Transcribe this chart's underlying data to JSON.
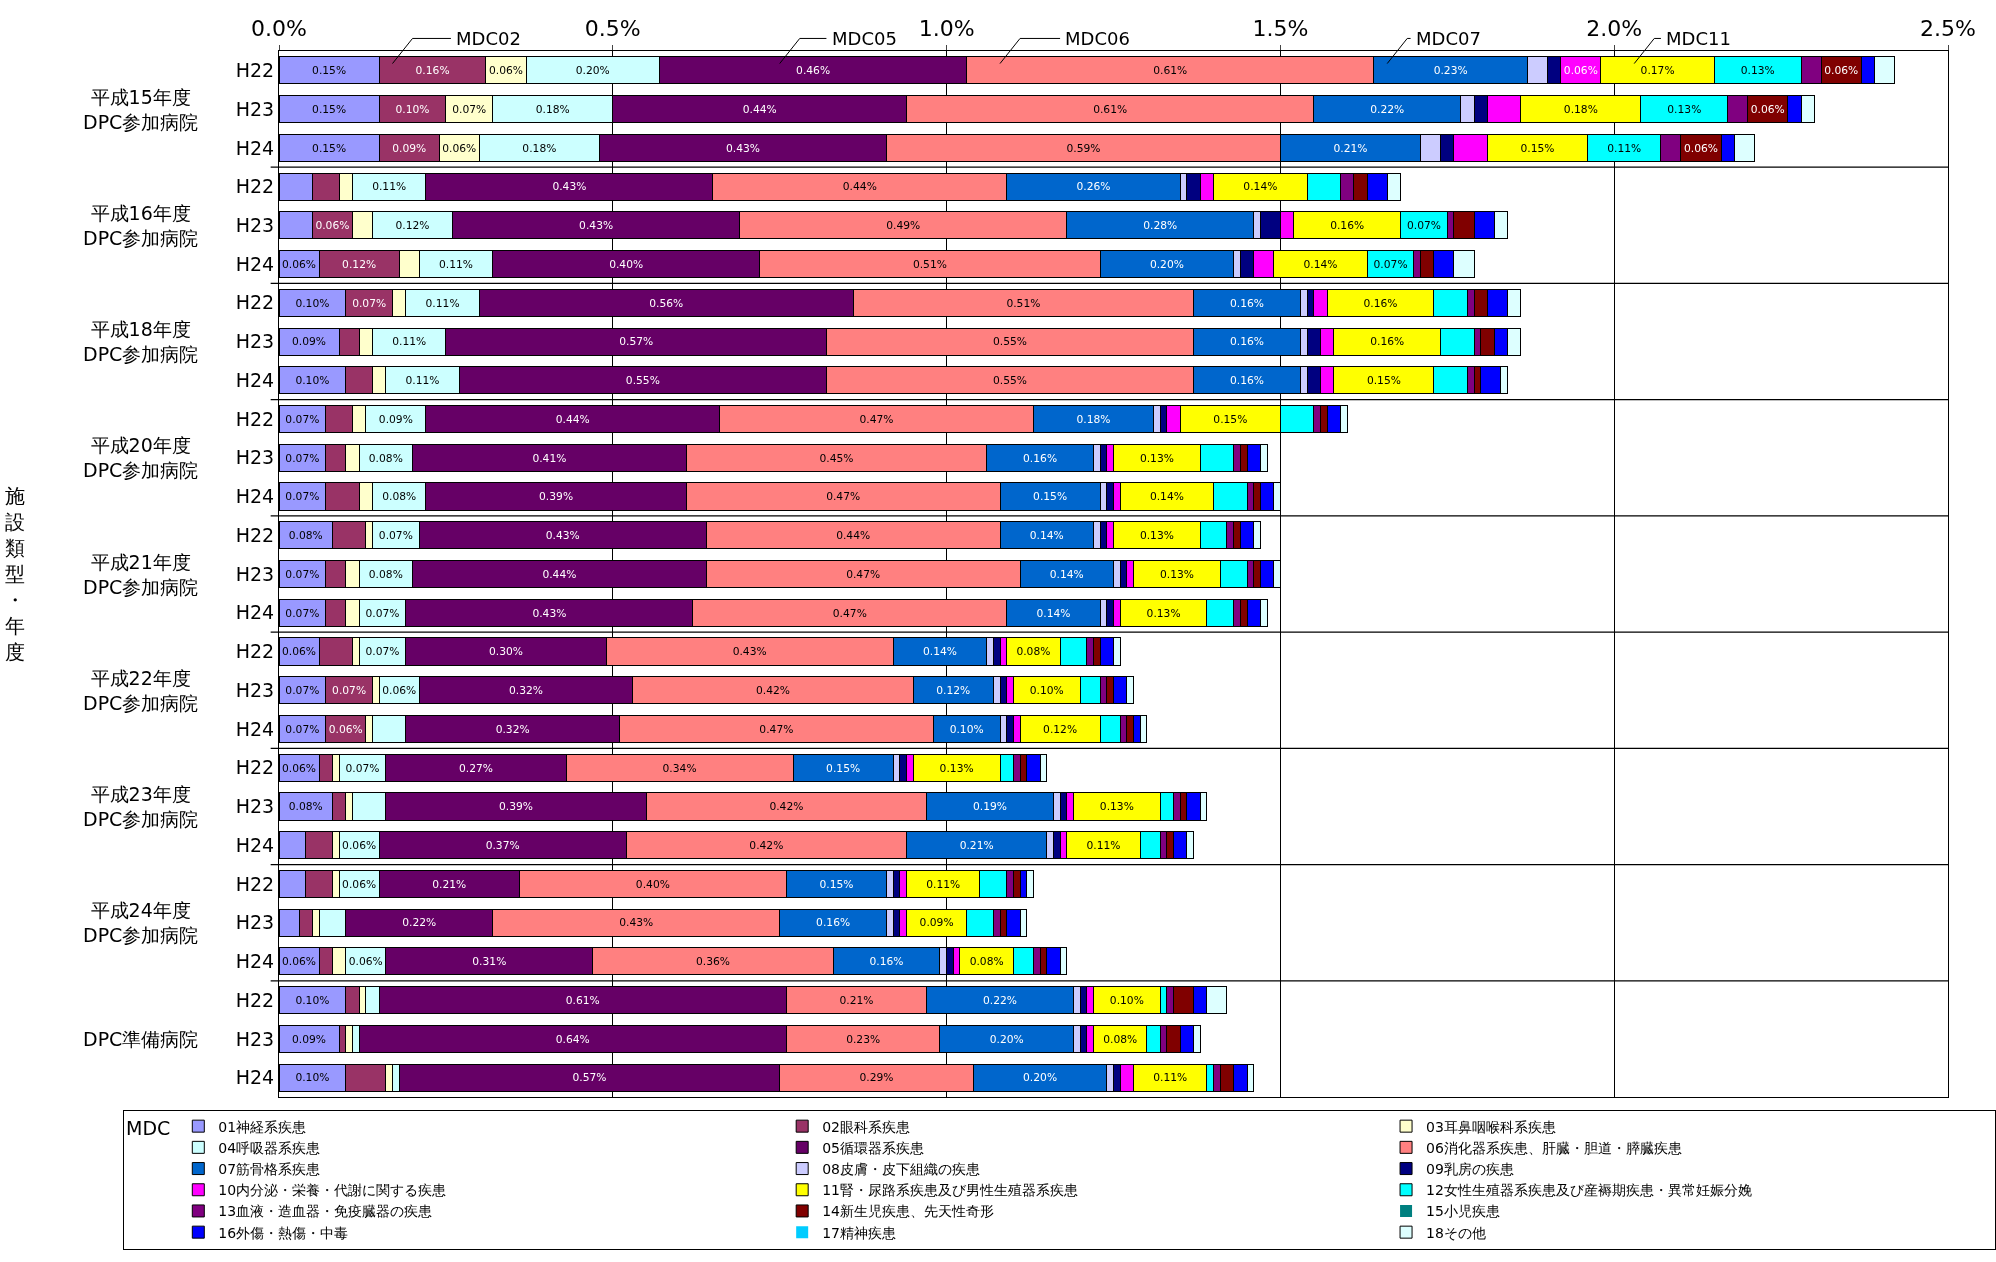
{
  "chart_data": {
    "type": "bar",
    "orientation": "horizontal",
    "stacked": true,
    "legend_title": "MDC",
    "legend": "bottom",
    "grid": "x",
    "categories": [
      "H22",
      "H23",
      "H24",
      "H22",
      "H23",
      "H24",
      "H22",
      "H23",
      "H24",
      "H22",
      "H23",
      "H24",
      "H22",
      "H23",
      "H24",
      "H22",
      "H23",
      "H24",
      "H22",
      "H23",
      "H24",
      "H22",
      "H23",
      "H24",
      "H22",
      "H23",
      "H24"
    ],
    "xlim": [
      0,
      2.5
    ],
    "xticks": [
      {
        "value": 0,
        "label": "0.0%"
      },
      {
        "value": 0.5,
        "label": "0.5%"
      },
      {
        "value": 1,
        "label": "1.0%"
      },
      {
        "value": 1.5,
        "label": "1.5%"
      },
      {
        "value": 2,
        "label": "2.0%"
      },
      {
        "value": 2.5,
        "label": "2.5%"
      }
    ],
    "annotations": [
      "平成15年度\nDPC参加病院",
      "平成16年度\nDPC参加病院",
      "平成18年度\nDPC参加病院",
      "平成20年度\nDPC参加病院",
      "平成21年度\nDPC参加病院",
      "平成22年度\nDPC参加病院",
      "平成23年度\nDPC参加病院",
      "平成24年度\nDPC参加病院",
      "DPC準備病院",
      "MDC02",
      "MDC05",
      "MDC06",
      "MDC07",
      "MDC11",
      "施設類型・年度"
    ],
    "series": [
      {
        "name": "01神経系疾患",
        "color": "#9999ff",
        "values": [
          0.15,
          0.15,
          0.15,
          0.05,
          0.05,
          0.06,
          0.1,
          0.09,
          0.1,
          0.07,
          0.07,
          0.07,
          0.08,
          0.07,
          0.07,
          0.06,
          0.07,
          0.07,
          0.06,
          0.08,
          0.04,
          0.04,
          0.03,
          0.06,
          0.1,
          0.09,
          0.1
        ],
        "value_labels": [
          "0.15%",
          "0.15%",
          "0.15%",
          null,
          null,
          "0.06%",
          "0.10%",
          "0.09%",
          "0.10%",
          "0.07%",
          "0.07%",
          "0.07%",
          "0.08%",
          "0.07%",
          "0.07%",
          "0.06%",
          "0.07%",
          "0.07%",
          "0.06%",
          "0.08%",
          null,
          null,
          null,
          "0.06%",
          "0.10%",
          "0.09%",
          "0.10%"
        ]
      },
      {
        "name": "02眼科系疾患",
        "color": "#993366",
        "values": [
          0.16,
          0.1,
          0.09,
          0.04,
          0.06,
          0.12,
          0.07,
          0.03,
          0.04,
          0.04,
          0.03,
          0.05,
          0.05,
          0.03,
          0.03,
          0.05,
          0.07,
          0.06,
          0.02,
          0.02,
          0.04,
          0.04,
          0.02,
          0.02,
          0.02,
          0.01,
          0.06
        ],
        "value_labels": [
          "0.16%",
          "0.10%",
          "0.09%",
          null,
          "0.06%",
          "0.12%",
          "0.07%",
          null,
          null,
          null,
          null,
          null,
          null,
          null,
          null,
          null,
          "0.07%",
          "0.06%",
          null,
          null,
          null,
          null,
          null,
          null,
          null,
          null,
          null
        ]
      },
      {
        "name": "03耳鼻咽喉科系疾患",
        "color": "#ffffcc",
        "values": [
          0.06,
          0.07,
          0.06,
          0.02,
          0.03,
          0.03,
          0.02,
          0.02,
          0.02,
          0.02,
          0.02,
          0.02,
          0.01,
          0.02,
          0.02,
          0.01,
          0.01,
          0.01,
          0.01,
          0.01,
          0.01,
          0.01,
          0.01,
          0.02,
          0.01,
          0.01,
          0.01
        ],
        "value_labels": [
          "0.06%",
          "0.07%",
          "0.06%",
          null,
          null,
          null,
          null,
          null,
          null,
          null,
          null,
          null,
          null,
          null,
          null,
          null,
          null,
          null,
          null,
          null,
          null,
          null,
          null,
          null,
          null,
          null,
          null
        ]
      },
      {
        "name": "04呼吸器系疾患",
        "color": "#ccffff",
        "values": [
          0.2,
          0.18,
          0.18,
          0.11,
          0.12,
          0.11,
          0.11,
          0.11,
          0.11,
          0.09,
          0.08,
          0.08,
          0.07,
          0.08,
          0.07,
          0.07,
          0.06,
          0.05,
          0.07,
          0.05,
          0.06,
          0.06,
          0.04,
          0.06,
          0.02,
          0.01,
          0.01
        ],
        "value_labels": [
          "0.20%",
          "0.18%",
          "0.18%",
          "0.11%",
          "0.12%",
          "0.11%",
          "0.11%",
          "0.11%",
          "0.11%",
          "0.09%",
          "0.08%",
          "0.08%",
          "0.07%",
          "0.08%",
          "0.07%",
          "0.07%",
          "0.06%",
          null,
          "0.07%",
          null,
          "0.06%",
          "0.06%",
          null,
          "0.06%",
          null,
          null,
          null
        ]
      },
      {
        "name": "05循環器系疾患",
        "color": "#660066",
        "values": [
          0.46,
          0.44,
          0.43,
          0.43,
          0.43,
          0.4,
          0.56,
          0.57,
          0.55,
          0.44,
          0.41,
          0.39,
          0.43,
          0.44,
          0.43,
          0.3,
          0.32,
          0.32,
          0.27,
          0.39,
          0.37,
          0.21,
          0.22,
          0.31,
          0.61,
          0.64,
          0.57
        ],
        "value_labels": [
          "0.46%",
          "0.44%",
          "0.43%",
          "0.43%",
          "0.43%",
          "0.40%",
          "0.56%",
          "0.57%",
          "0.55%",
          "0.44%",
          "0.41%",
          "0.39%",
          "0.43%",
          "0.44%",
          "0.43%",
          "0.30%",
          "0.32%",
          "0.32%",
          "0.27%",
          "0.39%",
          "0.37%",
          "0.21%",
          "0.22%",
          "0.31%",
          "0.61%",
          "0.64%",
          "0.57%"
        ]
      },
      {
        "name": "06消化器系疾患、肝臓・胆道・膵臓疾患",
        "color": "#ff8080",
        "values": [
          0.61,
          0.61,
          0.59,
          0.44,
          0.49,
          0.51,
          0.51,
          0.55,
          0.55,
          0.47,
          0.45,
          0.47,
          0.44,
          0.47,
          0.47,
          0.43,
          0.42,
          0.47,
          0.34,
          0.42,
          0.42,
          0.4,
          0.43,
          0.36,
          0.21,
          0.23,
          0.29
        ],
        "value_labels": [
          "0.61%",
          "0.61%",
          "0.59%",
          "0.44%",
          "0.49%",
          "0.51%",
          "0.51%",
          "0.55%",
          "0.55%",
          "0.47%",
          "0.45%",
          "0.47%",
          "0.44%",
          "0.47%",
          "0.47%",
          "0.43%",
          "0.42%",
          "0.47%",
          "0.34%",
          "0.42%",
          "0.42%",
          "0.40%",
          "0.43%",
          "0.36%",
          "0.21%",
          "0.23%",
          "0.29%"
        ]
      },
      {
        "name": "07筋骨格系疾患",
        "color": "#0066cc",
        "values": [
          0.23,
          0.22,
          0.21,
          0.26,
          0.28,
          0.2,
          0.16,
          0.16,
          0.16,
          0.18,
          0.16,
          0.15,
          0.14,
          0.14,
          0.14,
          0.14,
          0.12,
          0.1,
          0.15,
          0.19,
          0.21,
          0.15,
          0.16,
          0.16,
          0.22,
          0.2,
          0.2
        ],
        "value_labels": [
          "0.23%",
          "0.22%",
          "0.21%",
          "0.26%",
          "0.28%",
          "0.20%",
          "0.16%",
          "0.16%",
          "0.16%",
          "0.18%",
          "0.16%",
          "0.15%",
          "0.14%",
          "0.14%",
          "0.14%",
          "0.14%",
          "0.12%",
          "0.10%",
          "0.15%",
          "0.19%",
          "0.21%",
          "0.15%",
          "0.16%",
          "0.16%",
          "0.22%",
          "0.20%",
          "0.20%"
        ]
      },
      {
        "name": "08皮膚・皮下組織の疾患",
        "color": "#ccccff",
        "values": [
          0.03,
          0.02,
          0.03,
          0.01,
          0.01,
          0.01,
          0.01,
          0.01,
          0.01,
          0.01,
          0.01,
          0.01,
          0.01,
          0.01,
          0.01,
          0.01,
          0.01,
          0.01,
          0.01,
          0.01,
          0.01,
          0.01,
          0.01,
          0.01,
          0.01,
          0.01,
          0.01
        ]
      },
      {
        "name": "09乳房の疾患",
        "color": "#000080",
        "values": [
          0.02,
          0.02,
          0.02,
          0.02,
          0.03,
          0.02,
          0.01,
          0.02,
          0.02,
          0.01,
          0.01,
          0.01,
          0.01,
          0.01,
          0.01,
          0.01,
          0.01,
          0.01,
          0.01,
          0.01,
          0.01,
          0.01,
          0.01,
          0.01,
          0.01,
          0.01,
          0.01
        ]
      },
      {
        "name": "10内分泌・栄養・代謝に関する疾患",
        "color": "#ff00ff",
        "values": [
          0.06,
          0.05,
          0.05,
          0.02,
          0.02,
          0.03,
          0.02,
          0.02,
          0.02,
          0.02,
          0.01,
          0.01,
          0.01,
          0.01,
          0.01,
          0.01,
          0.01,
          0.01,
          0.01,
          0.01,
          0.01,
          0.01,
          0.01,
          0.01,
          0.01,
          0.01,
          0.02
        ],
        "value_labels": [
          "0.06%",
          null,
          null,
          null,
          null,
          null,
          null,
          null,
          null,
          null,
          null,
          null,
          null,
          null,
          null,
          null,
          null,
          null,
          null,
          null,
          null,
          null,
          null,
          null,
          null,
          null,
          null
        ]
      },
      {
        "name": "11腎・尿路系疾患及び男性生殖器系疾患",
        "color": "#ffff00",
        "values": [
          0.17,
          0.18,
          0.15,
          0.14,
          0.16,
          0.14,
          0.16,
          0.16,
          0.15,
          0.15,
          0.13,
          0.14,
          0.13,
          0.13,
          0.13,
          0.08,
          0.1,
          0.12,
          0.13,
          0.13,
          0.11,
          0.11,
          0.09,
          0.08,
          0.1,
          0.08,
          0.11
        ],
        "value_labels": [
          "0.17%",
          "0.18%",
          "0.15%",
          "0.14%",
          "0.16%",
          "0.14%",
          "0.16%",
          "0.16%",
          "0.15%",
          "0.15%",
          "0.13%",
          "0.14%",
          "0.13%",
          "0.13%",
          "0.13%",
          "0.08%",
          "0.10%",
          "0.12%",
          "0.13%",
          "0.13%",
          "0.11%",
          "0.11%",
          "0.09%",
          "0.08%",
          "0.10%",
          "0.08%",
          "0.11%"
        ]
      },
      {
        "name": "12女性生殖器系疾患及び産褥期疾患・異常妊娠分娩",
        "color": "#00ffff",
        "values": [
          0.13,
          0.13,
          0.11,
          0.05,
          0.07,
          0.07,
          0.05,
          0.05,
          0.05,
          0.05,
          0.05,
          0.05,
          0.04,
          0.04,
          0.04,
          0.04,
          0.03,
          0.03,
          0.02,
          0.02,
          0.03,
          0.04,
          0.04,
          0.03,
          0.01,
          0.02,
          0.01
        ],
        "value_labels": [
          "0.13%",
          "0.13%",
          "0.11%",
          null,
          "0.07%",
          "0.07%",
          null,
          null,
          null,
          null,
          null,
          null,
          null,
          null,
          null,
          null,
          null,
          null,
          null,
          null,
          null,
          null,
          null,
          null,
          null,
          null,
          null
        ]
      },
      {
        "name": "13血液・造血器・免疫臓器の疾患",
        "color": "#800080",
        "values": [
          0.03,
          0.03,
          0.03,
          0.02,
          0.01,
          0.01,
          0.01,
          0.01,
          0.01,
          0.01,
          0.01,
          0.01,
          0.01,
          0.01,
          0.01,
          0.01,
          0.01,
          0.01,
          0.01,
          0.01,
          0.01,
          0.01,
          0.01,
          0.01,
          0.01,
          0.01,
          0.01
        ]
      },
      {
        "name": "14新生児疾患、先天性奇形",
        "color": "#800000",
        "values": [
          0.06,
          0.06,
          0.06,
          0.02,
          0.03,
          0.02,
          0.02,
          0.02,
          0.01,
          0.01,
          0.01,
          0.01,
          0.01,
          0.01,
          0.01,
          0.01,
          0.01,
          0.01,
          0.01,
          0.01,
          0.01,
          0.01,
          0.01,
          0.01,
          0.03,
          0.02,
          0.02
        ],
        "value_labels": [
          "0.06%",
          "0.06%",
          "0.06%",
          null,
          null,
          null,
          null,
          null,
          null,
          null,
          null,
          null,
          null,
          null,
          null,
          null,
          null,
          null,
          null,
          null,
          null,
          null,
          null,
          null,
          null,
          null,
          null
        ]
      },
      {
        "name": "15小児疾患",
        "color": "#008080",
        "values": [
          0,
          0,
          0,
          0,
          0,
          0,
          0,
          0,
          0,
          0,
          0,
          0,
          0,
          0,
          0,
          0,
          0,
          0,
          0,
          0,
          0,
          0,
          0,
          0,
          0,
          0,
          0
        ]
      },
      {
        "name": "16外傷・熱傷・中毒",
        "color": "#0000ff",
        "values": [
          0.02,
          0.02,
          0.02,
          0.03,
          0.03,
          0.03,
          0.03,
          0.02,
          0.03,
          0.02,
          0.02,
          0.02,
          0.02,
          0.02,
          0.02,
          0.02,
          0.02,
          0.01,
          0.02,
          0.02,
          0.02,
          0.01,
          0.02,
          0.02,
          0.02,
          0.02,
          0.02
        ]
      },
      {
        "name": "17精神疾患",
        "color": "#00ccff",
        "values": [
          0,
          0,
          0,
          0,
          0,
          0,
          0,
          0,
          0,
          0,
          0,
          0,
          0,
          0,
          0,
          0,
          0,
          0,
          0,
          0,
          0,
          0,
          0,
          0,
          0,
          0,
          0
        ]
      },
      {
        "name": "18その他",
        "color": "#ddffff",
        "values": [
          0.03,
          0.02,
          0.03,
          0.02,
          0.02,
          0.03,
          0.02,
          0.02,
          0.01,
          0.01,
          0.01,
          0.01,
          0.01,
          0.01,
          0.01,
          0.01,
          0.01,
          0.01,
          0.01,
          0.01,
          0.01,
          0.01,
          0.01,
          0.01,
          0.03,
          0.01,
          0.01
        ]
      }
    ]
  }
}
